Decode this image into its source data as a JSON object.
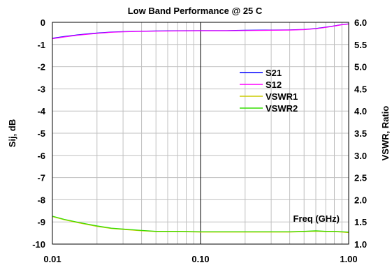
{
  "chart_data": {
    "type": "line",
    "title": "Low Band Performance @ 25 C",
    "xlabel": "Freq (GHz)",
    "ylabel_left": "Sij, dB",
    "ylabel_right": "VSWR, Ratio",
    "x_scale": "log",
    "xlim": [
      0.01,
      1.0
    ],
    "ylim_left": [
      -10,
      0
    ],
    "ylim_right": [
      1.0,
      6.0
    ],
    "grid": true,
    "marker_x": 0.1,
    "legend_placement": "right-center",
    "x_ticks": [
      {
        "value": 0.01,
        "label": "0.01"
      },
      {
        "value": 0.1,
        "label": "0.10"
      },
      {
        "value": 1.0,
        "label": "1.00"
      }
    ],
    "y_left_ticks": [
      {
        "value": 0,
        "label": "0"
      },
      {
        "value": -1,
        "label": "-1"
      },
      {
        "value": -2,
        "label": "-2"
      },
      {
        "value": -3,
        "label": "-3"
      },
      {
        "value": -4,
        "label": "-4"
      },
      {
        "value": -5,
        "label": "-5"
      },
      {
        "value": -6,
        "label": "-6"
      },
      {
        "value": -7,
        "label": "-7"
      },
      {
        "value": -8,
        "label": "-8"
      },
      {
        "value": -9,
        "label": "-9"
      },
      {
        "value": -10,
        "label": "-10"
      }
    ],
    "y_right_ticks": [
      {
        "value": 6.0,
        "label": "6.0"
      },
      {
        "value": 5.5,
        "label": "5.5"
      },
      {
        "value": 5.0,
        "label": "5.0"
      },
      {
        "value": 4.5,
        "label": "4.5"
      },
      {
        "value": 4.0,
        "label": "4.0"
      },
      {
        "value": 3.5,
        "label": "3.5"
      },
      {
        "value": 3.0,
        "label": "3.0"
      },
      {
        "value": 2.5,
        "label": "2.5"
      },
      {
        "value": 2.0,
        "label": "2.0"
      },
      {
        "value": 1.5,
        "label": "1.5"
      },
      {
        "value": 1.0,
        "label": "1.0"
      }
    ],
    "series": [
      {
        "name": "S21",
        "color": "#0000ff",
        "axis": "left",
        "x": [
          0.01,
          0.012,
          0.015,
          0.02,
          0.025,
          0.03,
          0.04,
          0.05,
          0.07,
          0.1,
          0.15,
          0.2,
          0.3,
          0.4,
          0.5,
          0.6,
          0.7,
          0.8,
          0.9,
          1.0
        ],
        "y": [
          -0.72,
          -0.64,
          -0.56,
          -0.48,
          -0.44,
          -0.42,
          -0.4,
          -0.39,
          -0.38,
          -0.37,
          -0.37,
          -0.36,
          -0.35,
          -0.34,
          -0.32,
          -0.28,
          -0.22,
          -0.16,
          -0.1,
          -0.07
        ]
      },
      {
        "name": "S12",
        "color": "#ff00ff",
        "axis": "left",
        "x": [
          0.01,
          0.012,
          0.015,
          0.02,
          0.025,
          0.03,
          0.04,
          0.05,
          0.07,
          0.1,
          0.15,
          0.2,
          0.3,
          0.4,
          0.5,
          0.6,
          0.7,
          0.8,
          0.9,
          1.0
        ],
        "y": [
          -0.74,
          -0.66,
          -0.58,
          -0.5,
          -0.45,
          -0.43,
          -0.41,
          -0.4,
          -0.39,
          -0.38,
          -0.38,
          -0.37,
          -0.36,
          -0.35,
          -0.33,
          -0.29,
          -0.23,
          -0.17,
          -0.11,
          -0.08
        ]
      },
      {
        "name": "VSWR1",
        "color": "#cccc00",
        "axis": "right",
        "x": [
          0.01,
          0.012,
          0.015,
          0.02,
          0.025,
          0.03,
          0.04,
          0.05,
          0.07,
          0.1,
          0.15,
          0.2,
          0.3,
          0.4,
          0.5,
          0.6,
          0.7,
          0.8,
          0.9,
          1.0
        ],
        "y": [
          1.62,
          1.55,
          1.48,
          1.4,
          1.35,
          1.33,
          1.3,
          1.28,
          1.28,
          1.27,
          1.27,
          1.27,
          1.27,
          1.27,
          1.28,
          1.29,
          1.28,
          1.28,
          1.27,
          1.26
        ]
      },
      {
        "name": "VSWR2",
        "color": "#33dd00",
        "axis": "right",
        "x": [
          0.01,
          0.012,
          0.015,
          0.02,
          0.025,
          0.03,
          0.04,
          0.05,
          0.07,
          0.1,
          0.15,
          0.2,
          0.3,
          0.4,
          0.5,
          0.6,
          0.7,
          0.8,
          0.9,
          1.0
        ],
        "y": [
          1.63,
          1.56,
          1.49,
          1.41,
          1.36,
          1.34,
          1.31,
          1.29,
          1.29,
          1.28,
          1.28,
          1.28,
          1.28,
          1.28,
          1.29,
          1.3,
          1.29,
          1.29,
          1.28,
          1.27
        ]
      }
    ]
  }
}
